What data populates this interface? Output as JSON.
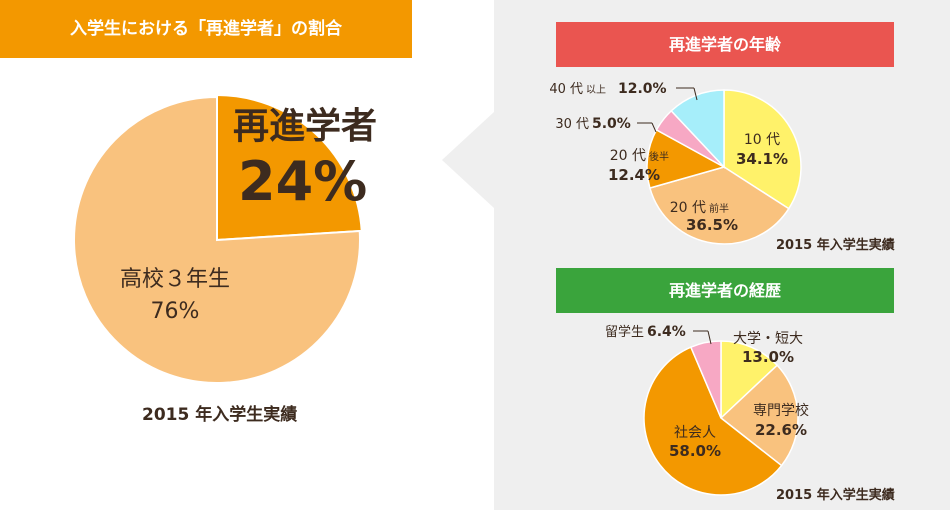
{
  "header": {
    "title": "入学生における「再進学者」の割合"
  },
  "colors": {
    "orange": "#f39800",
    "light_orange": "#f9c27e",
    "yellow": "#fff26a",
    "pink": "#f7a8c4",
    "cyan": "#a6eefa",
    "red_banner": "#ea5550",
    "green_banner": "#3aa43c"
  },
  "chart_data": [
    {
      "type": "pie",
      "title": "",
      "note": "2015 年入学生実績",
      "slices": [
        {
          "label": "再進学者",
          "value": 24,
          "value_label": "24%"
        },
        {
          "label": "高校３年生",
          "value": 76,
          "value_label": "76%"
        }
      ]
    },
    {
      "type": "pie",
      "title": "再進学者の年齢",
      "note": "2015 年入学生実績",
      "slices": [
        {
          "label": "10 代",
          "label_suffix": "",
          "value": 34.1,
          "value_label": "34.1%"
        },
        {
          "label": "20 代",
          "label_suffix": "前半",
          "value": 36.5,
          "value_label": "36.5%"
        },
        {
          "label": "20 代",
          "label_suffix": "後半",
          "value": 12.4,
          "value_label": "12.4%"
        },
        {
          "label": "30 代",
          "label_suffix": "",
          "value": 5.0,
          "value_label": "5.0%"
        },
        {
          "label": "40 代",
          "label_suffix": "以上",
          "value": 12.0,
          "value_label": "12.0%"
        }
      ]
    },
    {
      "type": "pie",
      "title": "再進学者の経歴",
      "note": "2015 年入学生実績",
      "slices": [
        {
          "label": "大学・短大",
          "value": 13.0,
          "value_label": "13.0%"
        },
        {
          "label": "専門学校",
          "value": 22.6,
          "value_label": "22.6%"
        },
        {
          "label": "社会人",
          "value": 58.0,
          "value_label": "58.0%"
        },
        {
          "label": "留学生",
          "value": 6.4,
          "value_label": "6.4%"
        }
      ]
    }
  ]
}
